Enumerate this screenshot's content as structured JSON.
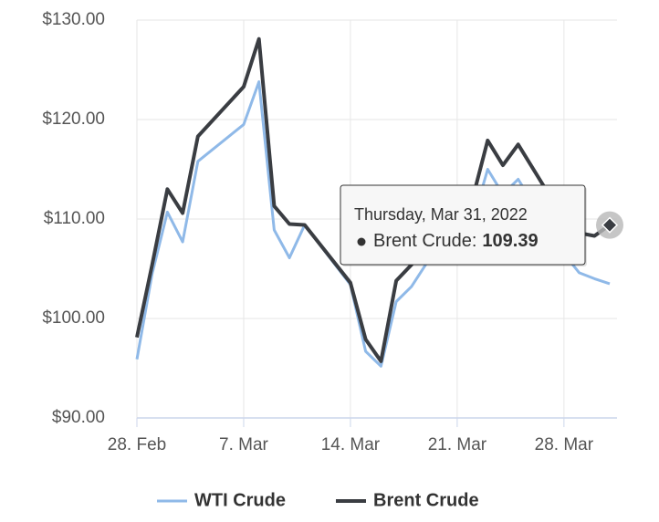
{
  "chart_data": {
    "type": "line",
    "x": [
      "2022-02-28",
      "2022-03-01",
      "2022-03-02",
      "2022-03-03",
      "2022-03-04",
      "2022-03-07",
      "2022-03-08",
      "2022-03-09",
      "2022-03-10",
      "2022-03-11",
      "2022-03-14",
      "2022-03-15",
      "2022-03-16",
      "2022-03-17",
      "2022-03-18",
      "2022-03-21",
      "2022-03-22",
      "2022-03-23",
      "2022-03-24",
      "2022-03-25",
      "2022-03-28",
      "2022-03-29",
      "2022-03-30",
      "2022-03-31"
    ],
    "series": [
      {
        "name": "WTI Crude",
        "color": "#8fb9e8",
        "values": [
          95.9,
          104.5,
          110.7,
          107.7,
          115.8,
          119.5,
          123.8,
          108.9,
          106.1,
          109.4,
          103.4,
          96.7,
          95.2,
          101.7,
          103.2,
          110.3,
          109.7,
          115.0,
          112.5,
          114.0,
          106.5,
          104.6,
          104.0,
          103.5
        ]
      },
      {
        "name": "Brent Crude",
        "color": "#3a3d42",
        "values": [
          98.1,
          105.4,
          113.0,
          110.6,
          118.3,
          123.3,
          128.1,
          111.3,
          109.5,
          109.4,
          103.6,
          97.9,
          95.7,
          103.8,
          105.4,
          112.0,
          112.0,
          117.9,
          115.4,
          117.5,
          110.0,
          108.6,
          108.3,
          109.39
        ]
      }
    ],
    "xlim": [
      "2022-02-28",
      "2022-03-31"
    ],
    "xticks": [
      {
        "value": "2022-02-28",
        "label": "28. Feb"
      },
      {
        "value": "2022-03-07",
        "label": "7. Mar"
      },
      {
        "value": "2022-03-14",
        "label": "14. Mar"
      },
      {
        "value": "2022-03-21",
        "label": "21. Mar"
      },
      {
        "value": "2022-03-28",
        "label": "28. Mar"
      }
    ],
    "ylim": [
      90,
      130
    ],
    "yticks": [
      {
        "value": 90,
        "label": "$90.00"
      },
      {
        "value": 100,
        "label": "$100.00"
      },
      {
        "value": 110,
        "label": "$110.00"
      },
      {
        "value": 120,
        "label": "$120.00"
      },
      {
        "value": 130,
        "label": "$130.00"
      }
    ],
    "grid": true,
    "legend": "bottom",
    "tooltip": {
      "date": "Thursday, Mar 31, 2022",
      "separator": ":",
      "series_index": 1,
      "point_index": 23
    }
  }
}
